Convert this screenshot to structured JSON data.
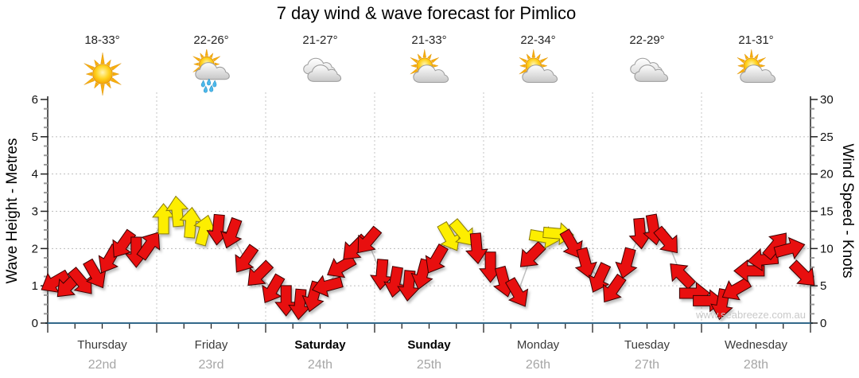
{
  "watermark": "www.seabreeze.com.au",
  "colors": {
    "arrow_red": "#e80f0f",
    "arrow_red_outline": "#3c0000",
    "arrow_yellow": "#fdee00",
    "arrow_yellow_outline": "#8a7d08",
    "bottom_axis_blue": "#33688a",
    "grid_dotted": "#bdbdbd",
    "wind_line": "#bfbfbf"
  },
  "forecast": {
    "days": [
      {
        "name": "Thursday",
        "date": "22nd",
        "weekend": false,
        "temp": "18-33°",
        "icon": "sunny"
      },
      {
        "name": "Friday",
        "date": "23rd",
        "weekend": false,
        "temp": "22-26°",
        "icon": "sun-showers"
      },
      {
        "name": "Saturday",
        "date": "24th",
        "weekend": true,
        "temp": "21-27°",
        "icon": "cloudy"
      },
      {
        "name": "Sunday",
        "date": "25th",
        "weekend": true,
        "temp": "21-33°",
        "icon": "partly-cloudy"
      },
      {
        "name": "Monday",
        "date": "26th",
        "weekend": false,
        "temp": "22-34°",
        "icon": "partly-cloudy"
      },
      {
        "name": "Tuesday",
        "date": "27th",
        "weekend": false,
        "temp": "22-29°",
        "icon": "cloudy"
      },
      {
        "name": "Wednesday",
        "date": "28th",
        "weekend": false,
        "temp": "21-31°",
        "icon": "partly-cloudy"
      }
    ]
  },
  "chart_data": {
    "type": "scatter",
    "title": "7 day wind & wave forecast for Pimlico",
    "y_left": {
      "label": "Wave Height - Metres",
      "range": [
        0,
        6
      ],
      "ticks": [
        0,
        1,
        2,
        3,
        4,
        5,
        6
      ],
      "minor_step": 0.25
    },
    "y_right": {
      "label": "Wind Speed - Knots",
      "range": [
        0,
        30
      ],
      "ticks": [
        0,
        5,
        10,
        15,
        20,
        25,
        30
      ],
      "minor_step": 1.25
    },
    "x": {
      "range_hours": [
        0,
        168
      ],
      "tick_every_hours": 6,
      "day_boundary_every_hours": 24
    },
    "grid": {
      "horizontal_dotted_at_metres": [
        1,
        2,
        3,
        4,
        5
      ],
      "vertical_dotted_at": "day boundaries"
    },
    "series": [
      {
        "name": "Wind speed and direction (3-hourly wind arrows)",
        "marker": "wind-arrow",
        "point_format": [
          "hours_from_start",
          "knots",
          "direction_deg_pointing_toward",
          "color r=red y=yellow"
        ],
        "points": [
          [
            1.5,
            5.5,
            240,
            "r"
          ],
          [
            4.5,
            5,
            225,
            "r"
          ],
          [
            7.5,
            5.5,
            140,
            "r"
          ],
          [
            10.5,
            6.5,
            150,
            "r"
          ],
          [
            13.5,
            8.5,
            210,
            "r"
          ],
          [
            16.5,
            10.5,
            215,
            "r"
          ],
          [
            19.5,
            9.5,
            180,
            "r"
          ],
          [
            22.5,
            10.5,
            35,
            "r"
          ],
          [
            25.5,
            14,
            0,
            "y"
          ],
          [
            28.5,
            15,
            355,
            "y"
          ],
          [
            31.5,
            13.5,
            5,
            "y"
          ],
          [
            34.5,
            12.5,
            15,
            "y"
          ],
          [
            37.5,
            12.5,
            185,
            "r"
          ],
          [
            40.5,
            12,
            200,
            "r"
          ],
          [
            43.5,
            8.5,
            215,
            "r"
          ],
          [
            46.5,
            6.5,
            225,
            "r"
          ],
          [
            49.5,
            4.5,
            210,
            "r"
          ],
          [
            52.5,
            3,
            180,
            "r"
          ],
          [
            55.5,
            2.5,
            185,
            "r"
          ],
          [
            58.5,
            3.5,
            195,
            "r"
          ],
          [
            61.5,
            5,
            255,
            "r"
          ],
          [
            64.5,
            7.5,
            240,
            "r"
          ],
          [
            67.5,
            10,
            225,
            "r"
          ],
          [
            70.5,
            11,
            220,
            "r"
          ],
          [
            73.5,
            6.5,
            185,
            "r"
          ],
          [
            76.5,
            5.5,
            190,
            "r"
          ],
          [
            79.5,
            5,
            185,
            "r"
          ],
          [
            82.5,
            6.5,
            195,
            "r"
          ],
          [
            85.5,
            8.5,
            210,
            "r"
          ],
          [
            88.5,
            11.5,
            150,
            "y"
          ],
          [
            91.5,
            12,
            140,
            "y"
          ],
          [
            94.5,
            10,
            175,
            "r"
          ],
          [
            97.5,
            7.5,
            180,
            "r"
          ],
          [
            100.5,
            5.5,
            165,
            "r"
          ],
          [
            103.5,
            4,
            150,
            "r"
          ],
          [
            106.5,
            9,
            225,
            "r"
          ],
          [
            109.5,
            11.5,
            100,
            "y"
          ],
          [
            112.5,
            12,
            95,
            "y"
          ],
          [
            115.5,
            10.5,
            150,
            "r"
          ],
          [
            118.5,
            8,
            165,
            "r"
          ],
          [
            121.5,
            6,
            205,
            "r"
          ],
          [
            124.5,
            4.5,
            215,
            "r"
          ],
          [
            127.5,
            8,
            195,
            "r"
          ],
          [
            130.5,
            12,
            175,
            "r"
          ],
          [
            133.5,
            12.5,
            170,
            "r"
          ],
          [
            136.5,
            11,
            140,
            "r"
          ],
          [
            139.5,
            6.5,
            315,
            "r"
          ],
          [
            142.5,
            4,
            90,
            "r"
          ],
          [
            145.5,
            3,
            90,
            "r"
          ],
          [
            148.5,
            2.5,
            190,
            "r"
          ],
          [
            151.5,
            4.5,
            240,
            "r"
          ],
          [
            154.5,
            7,
            270,
            "r"
          ],
          [
            157.5,
            8.5,
            265,
            "r"
          ],
          [
            160.5,
            10.5,
            40,
            "r"
          ],
          [
            163.5,
            10,
            75,
            "r"
          ],
          [
            166.5,
            6.5,
            135,
            "r"
          ]
        ]
      }
    ]
  }
}
